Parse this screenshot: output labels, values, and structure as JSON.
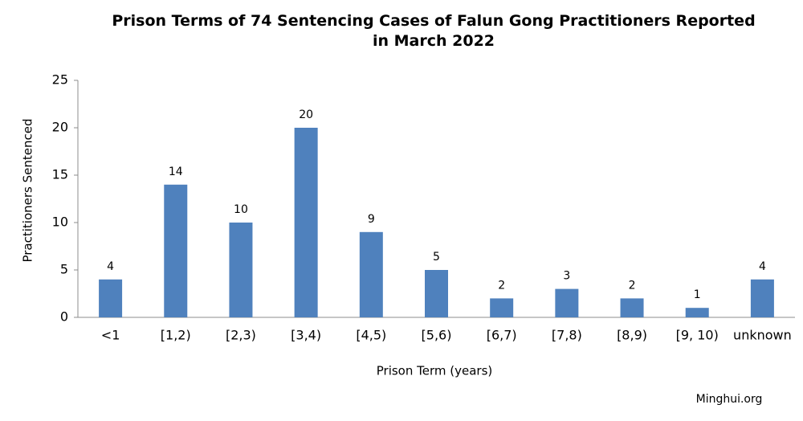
{
  "chart_data": {
    "type": "bar",
    "title": "Prison Terms of 74 Sentencing Cases of Falun Gong Practitioners Reported in March 2022",
    "x_label": "Prison Term (years)",
    "y_label": "Practitioners Sentenced",
    "source": "Minghui.org",
    "categories": [
      "<1",
      "[1,2)",
      "[2,3)",
      "[3,4)",
      "[4,5)",
      "[5,6)",
      "[6,7)",
      "[7,8)",
      "[8,9)",
      "[9, 10)",
      "unknown"
    ],
    "values": [
      4,
      14,
      10,
      20,
      9,
      5,
      2,
      3,
      2,
      1,
      4
    ],
    "color": "#4f81bd",
    "ylim": [
      0,
      25
    ],
    "yticks": [
      0,
      5,
      10,
      15,
      20,
      25
    ],
    "grid": false
  }
}
